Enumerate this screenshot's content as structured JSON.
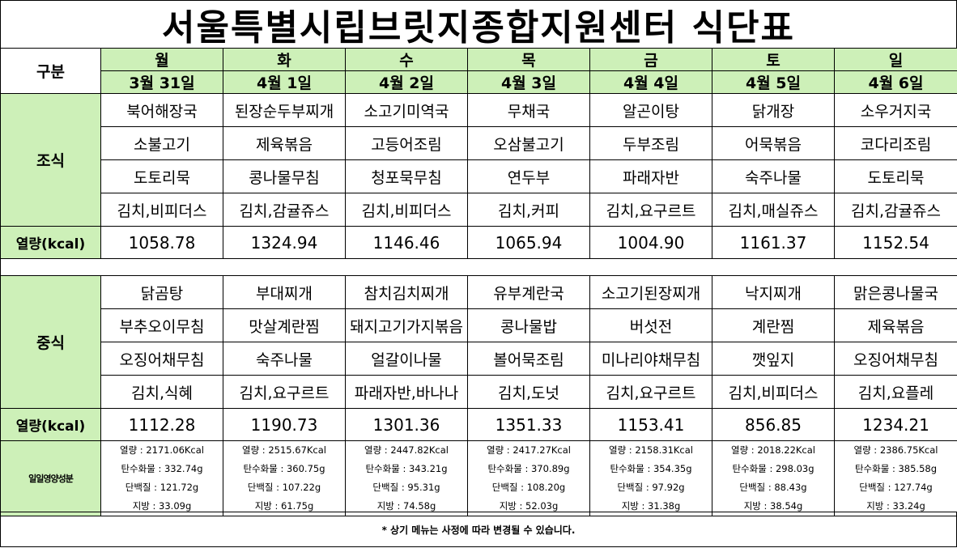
{
  "title": "서울특별시립브릿지종합지원센터 식단표",
  "header": {
    "label": "구분",
    "days": [
      {
        "day": "월",
        "date": "3월 31일"
      },
      {
        "day": "화",
        "date": "4월 1일"
      },
      {
        "day": "수",
        "date": "4월 2일"
      },
      {
        "day": "목",
        "date": "4월 3일"
      },
      {
        "day": "금",
        "date": "4월 4일"
      },
      {
        "day": "토",
        "date": "4월 5일"
      },
      {
        "day": "일",
        "date": "4월 6일"
      }
    ]
  },
  "breakfast": {
    "label": "조식",
    "rows": [
      [
        "북어해장국",
        "된장순두부찌개",
        "소고기미역국",
        "무채국",
        "알곤이탕",
        "닭개장",
        "소우거지국"
      ],
      [
        "소불고기",
        "제육볶음",
        "고등어조림",
        "오삼불고기",
        "두부조림",
        "어묵볶음",
        "코다리조림"
      ],
      [
        "도토리묵",
        "콩나물무침",
        "청포묵무침",
        "연두부",
        "파래자반",
        "숙주나물",
        "도토리묵"
      ],
      [
        "김치,비피더스",
        "김치,감귤쥬스",
        "김치,비피더스",
        "김치,커피",
        "김치,요구르트",
        "김치,매실쥬스",
        "김치,감귤쥬스"
      ]
    ],
    "kcal_label": "열량(kcal)",
    "kcal": [
      "1058.78",
      "1324.94",
      "1146.46",
      "1065.94",
      "1004.90",
      "1161.37",
      "1152.54"
    ]
  },
  "lunch": {
    "label": "중식",
    "rows": [
      [
        "닭곰탕",
        "부대찌개",
        "참치김치찌개",
        "유부계란국",
        "소고기된장찌개",
        "낙지찌개",
        "맑은콩나물국"
      ],
      [
        "부추오이무침",
        "맛살계란찜",
        "돼지고기가지볶음",
        "콩나물밥",
        "버섯전",
        "계란찜",
        "제육볶음"
      ],
      [
        "오징어채무침",
        "숙주나물",
        "얼갈이나물",
        "볼어묵조림",
        "미나리야채무침",
        "깻잎지",
        "오징어채무침"
      ],
      [
        "김치,식혜",
        "김치,요구르트",
        "파래자반,바나나",
        "김치,도넛",
        "김치,요구르트",
        "김치,비피더스",
        "김치,요플레"
      ]
    ],
    "kcal_label": "열량(kcal)",
    "kcal": [
      "1112.28",
      "1190.73",
      "1301.36",
      "1351.33",
      "1153.41",
      "856.85",
      "1234.21"
    ]
  },
  "nutrition": {
    "label": "일일영양성분",
    "days": [
      [
        "열량 : 2171.06Kcal",
        "탄수화물 : 332.74g",
        "단백질 : 121.72g",
        "지방 : 33.09g"
      ],
      [
        "열량 : 2515.67Kcal",
        "탄수화물 : 360.75g",
        "단백질 : 107.22g",
        "지방 : 61.75g"
      ],
      [
        "열량 : 2447.82Kcal",
        "탄수화물 : 343.21g",
        "단백질 : 95.31g",
        "지방 : 74.58g"
      ],
      [
        "열량 : 2417.27Kcal",
        "탄수화물 : 370.89g",
        "단백질 : 108.20g",
        "지방 : 52.03g"
      ],
      [
        "열량 : 2158.31Kcal",
        "탄수화물 : 354.35g",
        "단백질 : 97.92g",
        "지방 : 31.38g"
      ],
      [
        "열량 : 2018.22Kcal",
        "탄수화물 : 298.03g",
        "단백질 : 88.43g",
        "지방 : 38.54g"
      ],
      [
        "열량 : 2386.75Kcal",
        "탄수화물 : 385.58g",
        "단백질 : 127.74g",
        "지방 : 33.24g"
      ]
    ]
  },
  "note": "* 상기 메뉴는 사정에 따라 변경될 수 있습니다.",
  "colors": {
    "accent_green": "#cdf0b8"
  }
}
